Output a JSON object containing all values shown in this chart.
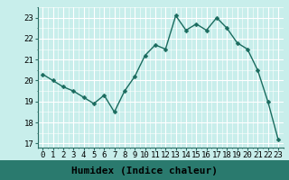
{
  "x": [
    0,
    1,
    2,
    3,
    4,
    5,
    6,
    7,
    8,
    9,
    10,
    11,
    12,
    13,
    14,
    15,
    16,
    17,
    18,
    19,
    20,
    21,
    22,
    23
  ],
  "y": [
    20.3,
    20.0,
    19.7,
    19.5,
    19.2,
    18.9,
    19.3,
    18.5,
    19.5,
    20.2,
    21.2,
    21.7,
    21.5,
    23.1,
    22.4,
    22.7,
    22.4,
    23.0,
    22.5,
    21.8,
    21.5,
    20.5,
    19.0,
    17.2
  ],
  "line_color": "#1a6b5e",
  "marker": "D",
  "marker_size": 2.5,
  "bg_color": "#c8eeeb",
  "plot_bg_color": "#c8eeeb",
  "grid_color": "#ffffff",
  "xlabel": "Humidex (Indice chaleur)",
  "xlabel_bg": "#2a7a6e",
  "ylim": [
    16.8,
    23.5
  ],
  "xlim": [
    -0.5,
    23.5
  ],
  "yticks": [
    17,
    18,
    19,
    20,
    21,
    22,
    23
  ],
  "xticks": [
    0,
    1,
    2,
    3,
    4,
    5,
    6,
    7,
    8,
    9,
    10,
    11,
    12,
    13,
    14,
    15,
    16,
    17,
    18,
    19,
    20,
    21,
    22,
    23
  ],
  "tick_fontsize": 6.5,
  "xlabel_fontsize": 8,
  "axis_color": "#2a6e64"
}
